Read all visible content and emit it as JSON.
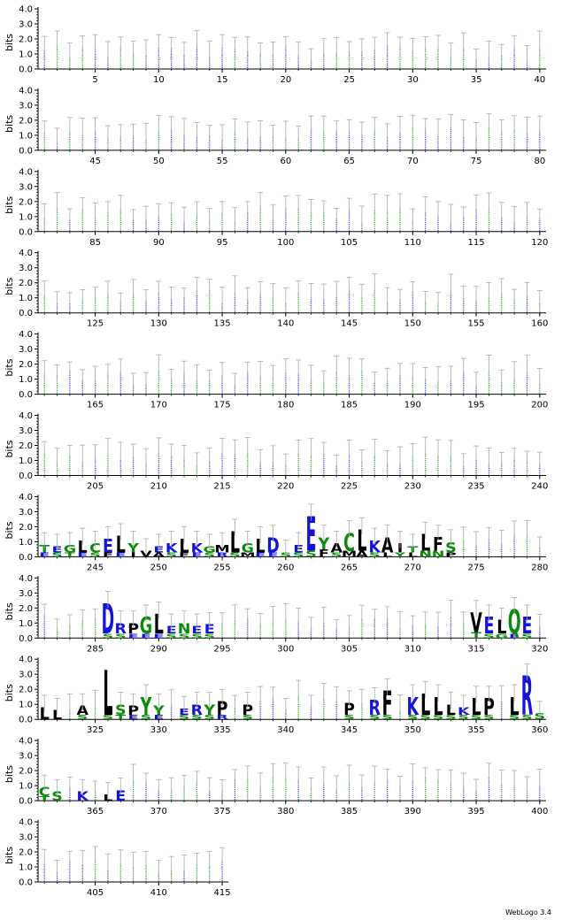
{
  "footer": {
    "brand": "WebLogo 3.4"
  },
  "chart_data": {
    "type": "sequence-logo",
    "ylabel": "bits",
    "ylim": [
      0,
      4.0
    ],
    "yticks": [
      "0.0",
      "1.0",
      "2.0",
      "3.0",
      "4.0"
    ],
    "positions_per_row": 40,
    "total_positions": 415,
    "x_tick_step": 5,
    "colors": {
      "hydrophobic": "#000000",
      "polar": "#0b8a0b",
      "basic": "#1414d4",
      "acidic": "#1414d4",
      "error_bar": "#aaaaaa"
    },
    "highlight_columns": [
      {
        "pos": 241,
        "letters": [
          [
            "T",
            0.5
          ],
          [
            "E",
            0.3
          ]
        ]
      },
      {
        "pos": 242,
        "letters": [
          [
            "E",
            0.4
          ],
          [
            "S",
            0.3
          ]
        ]
      },
      {
        "pos": 243,
        "letters": [
          [
            "G",
            0.5
          ],
          [
            "T",
            0.3
          ]
        ]
      },
      {
        "pos": 244,
        "letters": [
          [
            "L",
            0.8
          ],
          [
            "E",
            0.3
          ]
        ]
      },
      {
        "pos": 245,
        "letters": [
          [
            "C",
            0.6
          ],
          [
            "S",
            0.3
          ]
        ]
      },
      {
        "pos": 246,
        "letters": [
          [
            "E",
            0.9
          ],
          [
            "F",
            0.3
          ]
        ]
      },
      {
        "pos": 247,
        "letters": [
          [
            "L",
            1.1
          ],
          [
            "E",
            0.3
          ]
        ]
      },
      {
        "pos": 248,
        "letters": [
          [
            "Y",
            0.6
          ],
          [
            "I",
            0.3
          ]
        ]
      },
      {
        "pos": 249,
        "letters": [
          [
            "V",
            0.4
          ]
        ]
      },
      {
        "pos": 250,
        "letters": [
          [
            "E",
            0.4
          ],
          [
            "A",
            0.3
          ]
        ]
      },
      {
        "pos": 251,
        "letters": [
          [
            "K",
            0.6
          ],
          [
            "S",
            0.3
          ]
        ]
      },
      {
        "pos": 252,
        "letters": [
          [
            "L",
            0.9
          ],
          [
            "F",
            0.3
          ]
        ]
      },
      {
        "pos": 253,
        "letters": [
          [
            "K",
            0.6
          ],
          [
            "E",
            0.3
          ]
        ]
      },
      {
        "pos": 254,
        "letters": [
          [
            "G",
            0.4
          ],
          [
            "S",
            0.3
          ]
        ]
      },
      {
        "pos": 255,
        "letters": [
          [
            "M",
            0.5
          ],
          [
            "R",
            0.3
          ]
        ]
      },
      {
        "pos": 256,
        "letters": [
          [
            "L",
            1.4
          ],
          [
            "S",
            0.3
          ]
        ]
      },
      {
        "pos": 257,
        "letters": [
          [
            "G",
            0.6
          ],
          [
            "M",
            0.3
          ]
        ]
      },
      {
        "pos": 258,
        "letters": [
          [
            "L",
            0.9
          ],
          [
            "E",
            0.3
          ]
        ]
      },
      {
        "pos": 259,
        "letters": [
          [
            "D",
            1.0
          ],
          [
            "E",
            0.3
          ]
        ]
      },
      {
        "pos": 260,
        "letters": [
          [
            "S",
            0.3
          ]
        ]
      },
      {
        "pos": 261,
        "letters": [
          [
            "E",
            0.5
          ],
          [
            "S",
            0.3
          ]
        ]
      },
      {
        "pos": 262,
        "letters": [
          [
            "E",
            2.3
          ],
          [
            "S",
            0.4
          ]
        ]
      },
      {
        "pos": 263,
        "letters": [
          [
            "Y",
            0.8
          ],
          [
            "F",
            0.5
          ]
        ]
      },
      {
        "pos": 264,
        "letters": [
          [
            "A",
            0.6
          ],
          [
            "S",
            0.3
          ]
        ]
      },
      {
        "pos": 265,
        "letters": [
          [
            "C",
            1.2
          ],
          [
            "M",
            0.4
          ]
        ]
      },
      {
        "pos": 266,
        "letters": [
          [
            "L",
            1.4
          ],
          [
            "A",
            0.4
          ]
        ]
      },
      {
        "pos": 267,
        "letters": [
          [
            "K",
            0.8
          ],
          [
            "S",
            0.3
          ]
        ]
      },
      {
        "pos": 268,
        "letters": [
          [
            "A",
            1.0
          ],
          [
            "L",
            0.3
          ]
        ]
      },
      {
        "pos": 269,
        "letters": [
          [
            "I",
            0.6
          ],
          [
            "Y",
            0.3
          ]
        ]
      },
      {
        "pos": 270,
        "letters": [
          [
            "T",
            0.4
          ],
          [
            "L",
            0.3
          ]
        ]
      },
      {
        "pos": 271,
        "letters": [
          [
            "L",
            1.1
          ],
          [
            "N",
            0.4
          ]
        ]
      },
      {
        "pos": 272,
        "letters": [
          [
            "F",
            0.9
          ],
          [
            "N",
            0.4
          ]
        ]
      },
      {
        "pos": 273,
        "letters": [
          [
            "S",
            0.7
          ],
          [
            "P",
            0.3
          ]
        ]
      },
      {
        "pos": 286,
        "letters": [
          [
            "D",
            2.0
          ],
          [
            "S",
            0.3
          ]
        ]
      },
      {
        "pos": 287,
        "letters": [
          [
            "R",
            0.7
          ],
          [
            "S",
            0.3
          ]
        ]
      },
      {
        "pos": 288,
        "letters": [
          [
            "P",
            0.7
          ],
          [
            "E",
            0.3
          ]
        ]
      },
      {
        "pos": 289,
        "letters": [
          [
            "G",
            1.1
          ],
          [
            "E",
            0.3
          ]
        ]
      },
      {
        "pos": 290,
        "letters": [
          [
            "L",
            1.3
          ],
          [
            "E",
            0.3
          ]
        ]
      },
      {
        "pos": 291,
        "letters": [
          [
            "E",
            0.5
          ],
          [
            "S",
            0.3
          ]
        ]
      },
      {
        "pos": 292,
        "letters": [
          [
            "N",
            0.7
          ],
          [
            "S",
            0.3
          ]
        ]
      },
      {
        "pos": 293,
        "letters": [
          [
            "E",
            0.5
          ],
          [
            "S",
            0.3
          ]
        ]
      },
      {
        "pos": 294,
        "letters": [
          [
            "E",
            0.6
          ],
          [
            "S",
            0.3
          ]
        ]
      },
      {
        "pos": 315,
        "letters": [
          [
            "V",
            1.3
          ],
          [
            "T",
            0.4
          ]
        ]
      },
      {
        "pos": 316,
        "letters": [
          [
            "E",
            1.1
          ],
          [
            "S",
            0.3
          ]
        ]
      },
      {
        "pos": 317,
        "letters": [
          [
            "L",
            0.9
          ],
          [
            "G",
            0.3
          ]
        ]
      },
      {
        "pos": 318,
        "letters": [
          [
            "Q",
            1.6
          ],
          [
            "E",
            0.3
          ]
        ]
      },
      {
        "pos": 319,
        "letters": [
          [
            "E",
            1.1
          ],
          [
            "S",
            0.3
          ]
        ]
      },
      {
        "pos": 321,
        "letters": [
          [
            "L",
            0.8
          ]
        ]
      },
      {
        "pos": 322,
        "letters": [
          [
            "L",
            0.6
          ]
        ]
      },
      {
        "pos": 324,
        "letters": [
          [
            "A",
            0.6
          ],
          [
            "S",
            0.3
          ]
        ]
      },
      {
        "pos": 326,
        "letters": [
          [
            "L",
            3.0
          ],
          [
            "S",
            0.3
          ]
        ]
      },
      {
        "pos": 327,
        "letters": [
          [
            "S",
            0.7
          ],
          [
            "T",
            0.3
          ]
        ]
      },
      {
        "pos": 328,
        "letters": [
          [
            "P",
            0.6
          ],
          [
            "E",
            0.3
          ]
        ]
      },
      {
        "pos": 329,
        "letters": [
          [
            "Y",
            1.2
          ],
          [
            "S",
            0.3
          ]
        ]
      },
      {
        "pos": 330,
        "letters": [
          [
            "Y",
            0.6
          ],
          [
            "E",
            0.3
          ]
        ]
      },
      {
        "pos": 332,
        "letters": [
          [
            "E",
            0.4
          ],
          [
            "S",
            0.3
          ]
        ]
      },
      {
        "pos": 333,
        "letters": [
          [
            "R",
            0.7
          ],
          [
            "S",
            0.3
          ]
        ]
      },
      {
        "pos": 334,
        "letters": [
          [
            "Y",
            0.7
          ],
          [
            "S",
            0.3
          ]
        ]
      },
      {
        "pos": 335,
        "letters": [
          [
            "P",
            0.9
          ],
          [
            "R",
            0.3
          ]
        ]
      },
      {
        "pos": 337,
        "letters": [
          [
            "P",
            0.7
          ],
          [
            "S",
            0.3
          ]
        ]
      },
      {
        "pos": 345,
        "letters": [
          [
            "P",
            0.8
          ],
          [
            "S",
            0.3
          ]
        ]
      },
      {
        "pos": 347,
        "letters": [
          [
            "R",
            1.0
          ],
          [
            "S",
            0.3
          ]
        ]
      },
      {
        "pos": 348,
        "letters": [
          [
            "F",
            1.6
          ],
          [
            "S",
            0.3
          ]
        ]
      },
      {
        "pos": 350,
        "letters": [
          [
            "K",
            1.2
          ],
          [
            "S",
            0.3
          ]
        ]
      },
      {
        "pos": 351,
        "letters": [
          [
            "L",
            1.4
          ],
          [
            "S",
            0.3
          ]
        ]
      },
      {
        "pos": 352,
        "letters": [
          [
            "L",
            1.2
          ],
          [
            "S",
            0.3
          ]
        ]
      },
      {
        "pos": 353,
        "letters": [
          [
            "L",
            0.7
          ],
          [
            "S",
            0.3
          ]
        ]
      },
      {
        "pos": 354,
        "letters": [
          [
            "K",
            0.5
          ],
          [
            "S",
            0.3
          ]
        ]
      },
      {
        "pos": 355,
        "letters": [
          [
            "L",
            1.1
          ],
          [
            "S",
            0.3
          ]
        ]
      },
      {
        "pos": 356,
        "letters": [
          [
            "P",
            1.1
          ],
          [
            "S",
            0.3
          ]
        ]
      },
      {
        "pos": 358,
        "letters": [
          [
            "L",
            1.2
          ],
          [
            "S",
            0.3
          ]
        ]
      },
      {
        "pos": 359,
        "letters": [
          [
            "R",
            2.6
          ],
          [
            "S",
            0.3
          ]
        ]
      },
      {
        "pos": 360,
        "letters": [
          [
            "S",
            0.4
          ]
        ]
      },
      {
        "pos": 361,
        "letters": [
          [
            "C",
            0.6
          ],
          [
            "T",
            0.3
          ]
        ]
      },
      {
        "pos": 362,
        "letters": [
          [
            "S",
            0.6
          ]
        ]
      },
      {
        "pos": 364,
        "letters": [
          [
            "K",
            0.6
          ]
        ]
      },
      {
        "pos": 366,
        "letters": [
          [
            "L",
            0.4
          ]
        ]
      },
      {
        "pos": 367,
        "letters": [
          [
            "E",
            0.7
          ]
        ]
      }
    ]
  }
}
